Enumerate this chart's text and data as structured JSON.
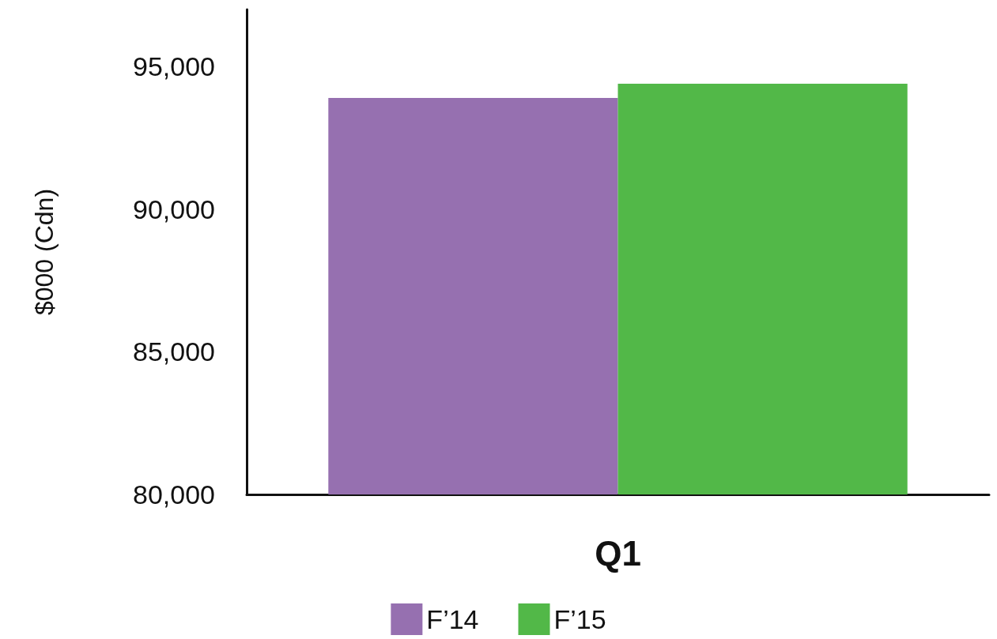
{
  "chart_data": {
    "type": "bar",
    "categories": [
      "Q1"
    ],
    "ylabel": "$000 (Cdn)",
    "series": [
      {
        "name": "F’14",
        "color": "#9670b0",
        "values": [
          93900
        ]
      },
      {
        "name": "F’15",
        "color": "#52b848",
        "values": [
          94400
        ]
      }
    ],
    "ylim": [
      80000,
      97000
    ],
    "yticks": [
      {
        "value": 80000,
        "label": "80,000"
      },
      {
        "value": 85000,
        "label": "85,000"
      },
      {
        "value": 90000,
        "label": "90,000"
      },
      {
        "value": 95000,
        "label": "95,000"
      }
    ],
    "grid": false,
    "legend": "bottom"
  }
}
